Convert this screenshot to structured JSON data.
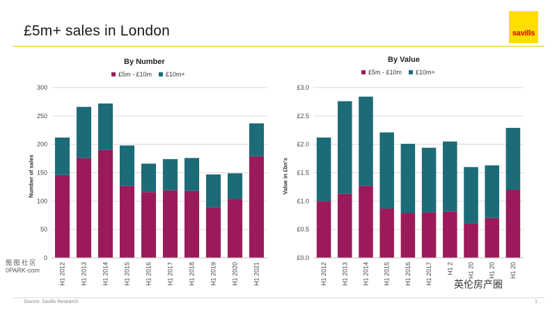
{
  "slide": {
    "title": "£5m+ sales  in London",
    "logo_text": "savills",
    "source": "Source: Savills Research",
    "page_number": "1"
  },
  "watermarks": {
    "left_line1": "图 图 社 区",
    "left_line2": "0PARK·com",
    "right": "英伦房产圈"
  },
  "colors": {
    "series_1": "#9b1b5a",
    "series_2": "#1c6b78",
    "accent_yellow": "#ffde00"
  },
  "chart_data": [
    {
      "type": "bar",
      "stacked": true,
      "title": "By Number",
      "ylabel": "Number of sales",
      "xlabel": "",
      "categories": [
        "H1 2012",
        "H1 2013",
        "H1 2014",
        "H1 2015",
        "H1 2016",
        "H1 2017",
        "H1 2018",
        "H1 2019",
        "H1 2020",
        "H1 2021"
      ],
      "series": [
        {
          "name": "£5m - £10m",
          "values": [
            146,
            176,
            190,
            127,
            116,
            119,
            118,
            89,
            104,
            179
          ]
        },
        {
          "name": "£10m+",
          "values": [
            66,
            90,
            82,
            71,
            50,
            55,
            58,
            58,
            45,
            58
          ]
        }
      ],
      "ylim": [
        0,
        300
      ],
      "yticks": [
        "0",
        "50",
        "100",
        "150",
        "200",
        "250",
        "300"
      ],
      "grid": true,
      "legend": "top"
    },
    {
      "type": "bar",
      "stacked": true,
      "title": "By Value",
      "ylabel": "Value in £bn's",
      "xlabel": "",
      "categories": [
        "H1 2012",
        "H1 2013",
        "H1 2014",
        "H1 2015",
        "H1 2016",
        "H1 2017",
        "H1 2",
        "H1 20",
        "H1 20",
        "H1 20"
      ],
      "series": [
        {
          "name": "£5m - £10m",
          "values": [
            1.0,
            1.13,
            1.27,
            0.87,
            0.79,
            0.8,
            0.81,
            0.61,
            0.7,
            1.2
          ]
        },
        {
          "name": "£10m+",
          "values": [
            1.12,
            1.63,
            1.57,
            1.34,
            1.22,
            1.14,
            1.24,
            0.99,
            0.93,
            1.09
          ]
        }
      ],
      "ylim": [
        0,
        3.0
      ],
      "yticks": [
        "£0.0",
        "£0.5",
        "£1.0",
        "£1.5",
        "£2.0",
        "£2.5",
        "£3.0"
      ],
      "grid": true,
      "legend": "top"
    }
  ]
}
